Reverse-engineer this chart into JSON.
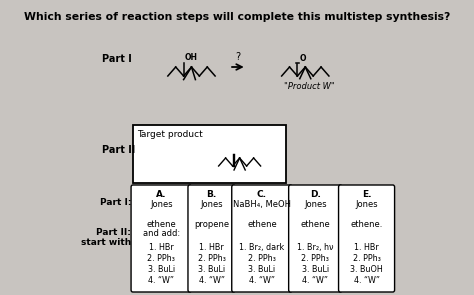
{
  "title": "Which series of reaction steps will complete this multistep synthesis?",
  "bg_color": "#c8c4c0",
  "columns": [
    "A.",
    "B.",
    "C.",
    "D.",
    "E."
  ],
  "part1_rows": [
    "Jones",
    "Jones",
    "NaBH₄, MeOH",
    "Jones",
    "Jones"
  ],
  "part2_start": [
    "ethene\nand add:",
    "propene",
    "ethene",
    "ethene",
    "ethene."
  ],
  "part2_steps": [
    [
      "1. HBr",
      "2. PPh₃",
      "3. BuLi",
      "4. “W”"
    ],
    [
      "1. HBr",
      "2. PPh₃",
      "3. BuLi",
      "4. “W”"
    ],
    [
      "1. Br₂, dark",
      "2. PPh₃",
      "3. BuLi",
      "4. “W”"
    ],
    [
      "1. Br₂, hν",
      "2. PPh₃",
      "3. BuLi",
      "4. “W”"
    ],
    [
      "1. HBr",
      "2. PPh₃",
      "3. BuOH",
      "4. “W”"
    ]
  ],
  "fig_width": 4.74,
  "fig_height": 2.95,
  "dpi": 100
}
